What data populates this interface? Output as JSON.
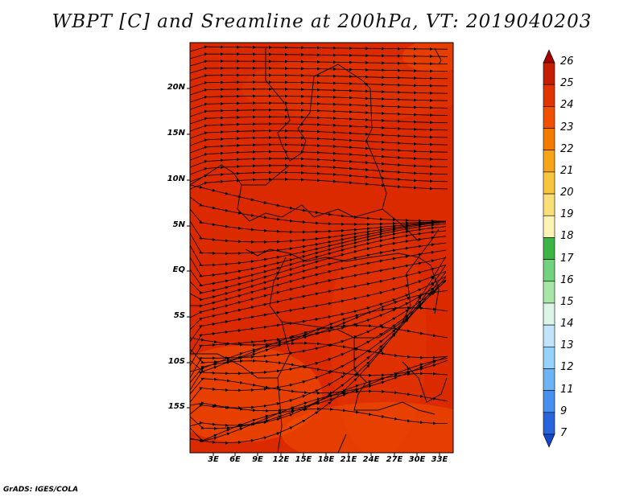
{
  "title": "WBPT [C] and Sreamline at 200hPa, VT: 2019040203",
  "credit": "GrADS: IGES/COLA",
  "lat_ticks": [
    "20N",
    "15N",
    "10N",
    "5N",
    "EQ",
    "5S",
    "10S",
    "15S"
  ],
  "lon_ticks": [
    "3E",
    "6E",
    "9E",
    "12E",
    "15E",
    "18E",
    "21E",
    "24E",
    "27E",
    "30E",
    "33E"
  ],
  "colorbar": {
    "labels": [
      "26",
      "25",
      "24",
      "23",
      "22",
      "21",
      "20",
      "19",
      "18",
      "17",
      "16",
      "15",
      "14",
      "13",
      "12",
      "11",
      "9",
      "7"
    ],
    "colors": [
      "#a50000",
      "#c51e00",
      "#e03500",
      "#f05000",
      "#f57a00",
      "#f7a418",
      "#f8c63e",
      "#fadf78",
      "#fbf4b4",
      "#3cb446",
      "#73d27d",
      "#a8e6a8",
      "#dcf5e6",
      "#c2e4fa",
      "#96d2fa",
      "#6eb4f5",
      "#4690f0",
      "#2864dc",
      "#1446c8"
    ]
  },
  "map": {
    "field": "WBPT",
    "units": "C",
    "level": "200hPa",
    "dominant_colors": [
      "#dc2a00",
      "#e03500",
      "#f05000"
    ]
  }
}
